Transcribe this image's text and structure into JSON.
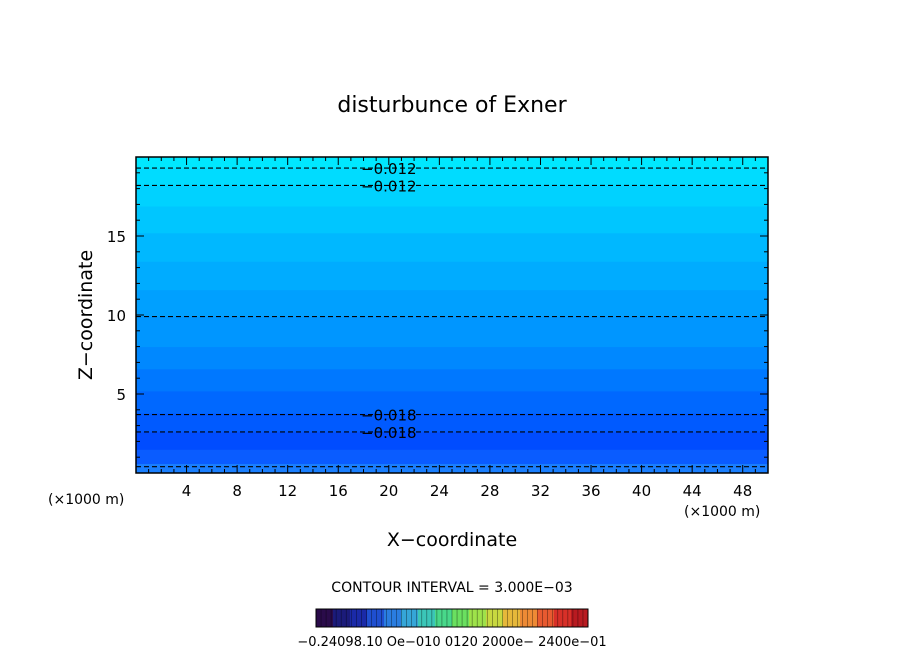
{
  "chart_data": {
    "type": "heatmap",
    "title": "disturbunce of Exner",
    "xlabel": "X−coordinate",
    "ylabel": "Z−coordinate",
    "x_unit_left": "(×1000 m)",
    "x_unit_right": "(×1000 m)",
    "xlim": [
      0,
      50
    ],
    "ylim": [
      0,
      20
    ],
    "x_ticks": [
      "4",
      "8",
      "12",
      "16",
      "20",
      "24",
      "28",
      "32",
      "36",
      "40",
      "44",
      "48"
    ],
    "y_ticks": [
      "5",
      "10",
      "15"
    ],
    "contour_interval_text": "CONTOUR INTERVAL = 3.000E−03",
    "colorbar_text": "−0.24098.10 Oe−010 0120 2000e− 2400e−01",
    "bands": [
      {
        "z0": 0.0,
        "z1": 0.6,
        "color": "#1a7fff"
      },
      {
        "z0": 0.6,
        "z1": 1.5,
        "color": "#0a5cff"
      },
      {
        "z0": 1.5,
        "z1": 2.6,
        "color": "#004cff"
      },
      {
        "z0": 2.6,
        "z1": 3.8,
        "color": "#005aff"
      },
      {
        "z0": 3.8,
        "z1": 5.2,
        "color": "#0068ff"
      },
      {
        "z0": 5.2,
        "z1": 6.6,
        "color": "#0078ff"
      },
      {
        "z0": 6.6,
        "z1": 8.0,
        "color": "#0088ff"
      },
      {
        "z0": 8.0,
        "z1": 9.9,
        "color": "#0096ff"
      },
      {
        "z0": 9.9,
        "z1": 11.6,
        "color": "#00a0ff"
      },
      {
        "z0": 11.6,
        "z1": 13.4,
        "color": "#00acff"
      },
      {
        "z0": 13.4,
        "z1": 15.2,
        "color": "#00b8ff"
      },
      {
        "z0": 15.2,
        "z1": 16.9,
        "color": "#00c6ff"
      },
      {
        "z0": 16.9,
        "z1": 18.2,
        "color": "#00d2ff"
      },
      {
        "z0": 18.2,
        "z1": 19.3,
        "color": "#00dcff"
      },
      {
        "z0": 19.3,
        "z1": 20.0,
        "color": "#00e8ff"
      }
    ],
    "contours": [
      {
        "z": 19.3,
        "label": "−0.012",
        "label_x": 20
      },
      {
        "z": 18.2,
        "label": "−0.012",
        "label_x": 20
      },
      {
        "z": 9.9,
        "label": "",
        "label_x": 20
      },
      {
        "z": 3.7,
        "label": "−0.018",
        "label_x": 20
      },
      {
        "z": 2.6,
        "label": "−0.018",
        "label_x": 20
      },
      {
        "z": 0.4,
        "label": "",
        "label_x": 20
      }
    ],
    "colorbar_colors": [
      "#2a0b4a",
      "#1b1b7a",
      "#1a2aa8",
      "#1f4fd0",
      "#2a7de0",
      "#35a6d8",
      "#3bc6b8",
      "#48d88a",
      "#6ae060",
      "#9ee24a",
      "#c8d840",
      "#e6b83a",
      "#ee8a35",
      "#e85a30",
      "#d83028",
      "#b81a20"
    ]
  }
}
